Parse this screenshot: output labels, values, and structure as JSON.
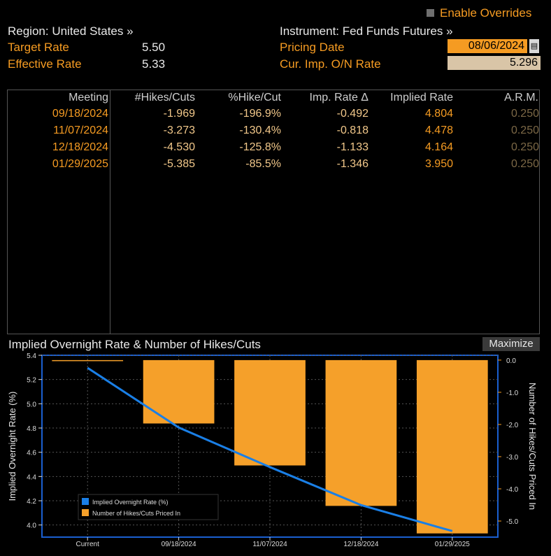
{
  "enable_overrides": "Enable Overrides",
  "region": {
    "label": "Region: United States »"
  },
  "instrument": {
    "label": "Instrument: Fed Funds Futures »"
  },
  "target_rate": {
    "label": "Target Rate",
    "value": "5.50"
  },
  "effective_rate": {
    "label": "Effective Rate",
    "value": "5.33"
  },
  "pricing_date": {
    "label": "Pricing Date",
    "value": "08/06/2024"
  },
  "cur_imp_rate": {
    "label": "Cur. Imp. O/N Rate",
    "value": "5.296"
  },
  "table": {
    "headers": [
      "Meeting",
      "#Hikes/Cuts",
      "%Hike/Cut",
      "Imp. Rate Δ",
      "Implied Rate",
      "A.R.M."
    ],
    "rows": [
      [
        "09/18/2024",
        "-1.969",
        "-196.9%",
        "-0.492",
        "4.804",
        "0.250"
      ],
      [
        "11/07/2024",
        "-3.273",
        "-130.4%",
        "-0.818",
        "4.478",
        "0.250"
      ],
      [
        "12/18/2024",
        "-4.530",
        "-125.8%",
        "-1.133",
        "4.164",
        "0.250"
      ],
      [
        "01/29/2025",
        "-5.385",
        "-85.5%",
        "-1.346",
        "3.950",
        "0.250"
      ]
    ]
  },
  "chart_title": "Implied Overnight Rate & Number of Hikes/Cuts",
  "maximize_label": "Maximize",
  "colors": {
    "accent": "#f59b22",
    "line": "#1a7fe6",
    "bar": "#f5a02a",
    "background": "#000000"
  },
  "chart_data": {
    "type": "bar",
    "categories": [
      "Current",
      "09/18/2024",
      "11/07/2024",
      "12/18/2024",
      "01/29/2025"
    ],
    "series": [
      {
        "name": "Implied Overnight Rate (%)",
        "type": "line",
        "axis": "left",
        "values": [
          5.296,
          4.804,
          4.478,
          4.164,
          3.95
        ]
      },
      {
        "name": "Number of Hikes/Cuts Priced In",
        "type": "bar",
        "axis": "right",
        "values": [
          0,
          -1.969,
          -3.273,
          -4.53,
          -5.385
        ]
      }
    ],
    "ylabel": "Implied Overnight Rate (%)",
    "y2label": "Number of Hikes/Cuts Priced In",
    "ylim": [
      3.9,
      5.4
    ],
    "y2lim": [
      -5.5,
      0.15
    ],
    "yticks": [
      "5.4",
      "5.2",
      "5.0",
      "4.8",
      "4.6",
      "4.4",
      "4.2",
      "4.0"
    ],
    "y2ticks": [
      "0.0",
      "-1.0",
      "-2.0",
      "-3.0",
      "-4.0",
      "-5.0"
    ],
    "legend_placement": "bottom-left",
    "grid": true
  }
}
